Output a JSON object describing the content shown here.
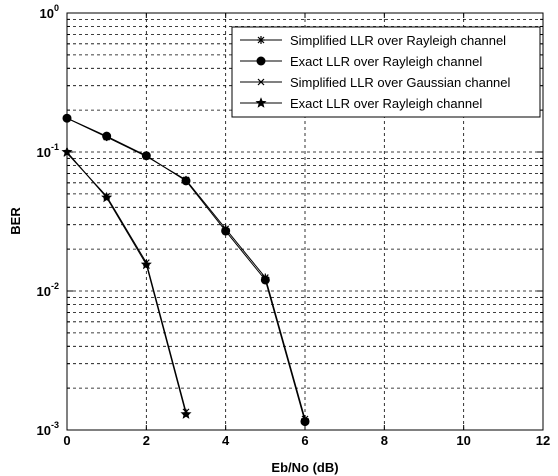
{
  "chart_data": {
    "type": "line",
    "xlabel": "Eb/No (dB)",
    "ylabel": "BER",
    "xlim": [
      0,
      12
    ],
    "ylim": [
      0.001,
      1
    ],
    "yscale": "log",
    "grid": true,
    "legend_position": "top-right",
    "x_ticks": [
      0,
      2,
      4,
      6,
      8,
      10,
      12
    ],
    "y_ticks": [
      {
        "value": 0.001,
        "base": "10",
        "exp": "-3"
      },
      {
        "value": 0.01,
        "base": "10",
        "exp": "-2"
      },
      {
        "value": 0.1,
        "base": "10",
        "exp": "-1"
      },
      {
        "value": 1,
        "base": "10",
        "exp": "0"
      }
    ],
    "series": [
      {
        "name": "Simplified LLR over Rayleigh channel",
        "marker": "asterisk",
        "x": [
          0,
          1,
          2,
          3,
          4,
          5,
          6
        ],
        "y": [
          0.175,
          0.128,
          0.093,
          0.063,
          0.028,
          0.0125,
          0.0012
        ]
      },
      {
        "name": "Exact LLR over Rayleigh channel",
        "marker": "dot",
        "x": [
          0,
          1,
          2,
          3,
          4,
          5,
          6
        ],
        "y": [
          0.175,
          0.13,
          0.094,
          0.062,
          0.027,
          0.012,
          0.00115
        ]
      },
      {
        "name": "Simplified LLR over Gaussian channel",
        "marker": "cross",
        "x": [
          0,
          1,
          2,
          3
        ],
        "y": [
          0.098,
          0.048,
          0.016,
          0.00135
        ]
      },
      {
        "name": "Exact LLR over Rayleigh channel",
        "marker": "star",
        "x": [
          0,
          1,
          2,
          3
        ],
        "y": [
          0.1,
          0.047,
          0.0155,
          0.0013
        ]
      }
    ]
  }
}
